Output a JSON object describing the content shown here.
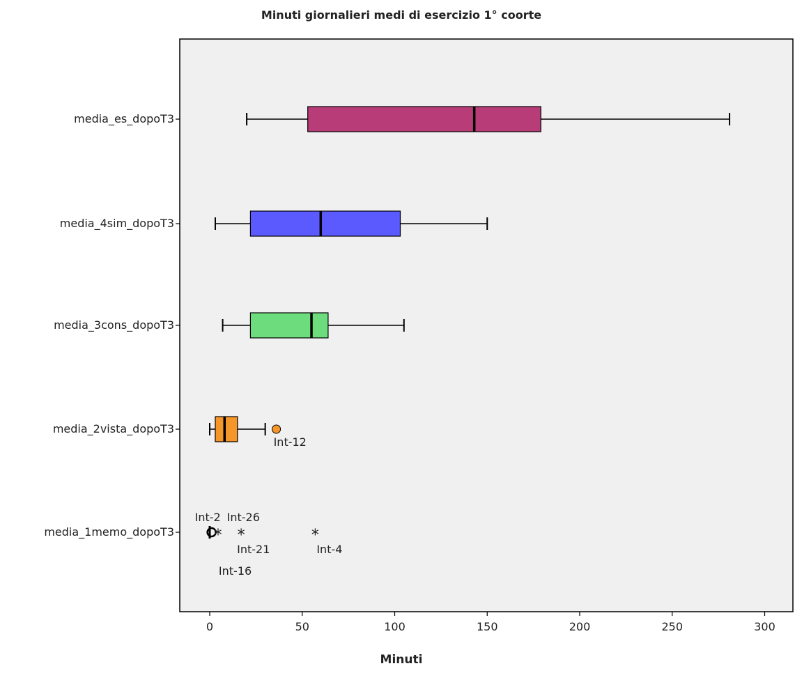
{
  "chart_data": {
    "type": "boxplot",
    "orientation": "horizontal",
    "title": "Minuti giornalieri medi di esercizio 1° coorte",
    "xlabel": "Minuti",
    "ylabel": "",
    "xlim": [
      -16,
      316
    ],
    "xticks": [
      0,
      50,
      100,
      150,
      200,
      250,
      300
    ],
    "grid": false,
    "plot_background": "#f0f0f0",
    "categories": [
      "media_es_dopoT3",
      "media_4sim_dopoT3",
      "media_3cons_dopoT3",
      "media_2vista_dopoT3",
      "media_1memo_dopoT3"
    ],
    "series": [
      {
        "category": "media_es_dopoT3",
        "color": "#b83c78",
        "whisker_low": 20,
        "q1": 53,
        "median": 143,
        "q3": 179,
        "whisker_high": 281,
        "outliers": []
      },
      {
        "category": "media_4sim_dopoT3",
        "color": "#5a5aff",
        "whisker_low": 3,
        "q1": 22,
        "median": 60,
        "q3": 103,
        "whisker_high": 150,
        "outliers": []
      },
      {
        "category": "media_3cons_dopoT3",
        "color": "#6cdc7c",
        "whisker_low": 7,
        "q1": 22,
        "median": 55,
        "q3": 64,
        "whisker_high": 105,
        "outliers": []
      },
      {
        "category": "media_2vista_dopoT3",
        "color": "#f5962a",
        "whisker_low": 0,
        "q1": 3,
        "median": 8,
        "q3": 15,
        "whisker_high": 30,
        "outliers": [
          {
            "value": 36,
            "marker": "circle",
            "label": "Int-12"
          }
        ]
      },
      {
        "category": "media_1memo_dopoT3",
        "color": "#000000",
        "whisker_low": 0,
        "q1": 0,
        "median": 0,
        "q3": 0,
        "whisker_high": 0,
        "outliers": [
          {
            "value": 1,
            "marker": "circle",
            "label": "Int-2"
          },
          {
            "value": 4.5,
            "marker": "star",
            "label": "Int-26"
          },
          {
            "value": 17,
            "marker": "star",
            "label": "Int-21"
          },
          {
            "value": 57,
            "marker": "star",
            "label": "Int-4"
          },
          {
            "value": 6,
            "marker": "none",
            "label": "Int-16"
          }
        ]
      }
    ]
  }
}
